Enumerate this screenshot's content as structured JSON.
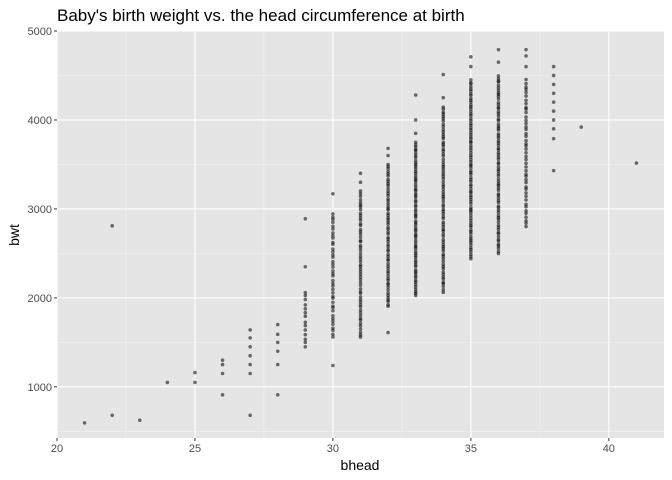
{
  "chart_data": {
    "type": "scatter",
    "title": "Baby's birth weight vs. the head circumference at birth",
    "xlabel": "bhead",
    "ylabel": "bwt",
    "xlim": [
      20,
      42
    ],
    "ylim": [
      425,
      5000
    ],
    "x_ticks": [
      20,
      25,
      30,
      35,
      40
    ],
    "y_ticks": [
      1000,
      2000,
      3000,
      4000,
      5000
    ],
    "x_tick_labels": [
      "20",
      "25",
      "30",
      "35",
      "40"
    ],
    "y_tick_labels": [
      "1000",
      "2000",
      "3000",
      "4000",
      "5000"
    ],
    "grid": true,
    "panel_background": "#e5e5e5",
    "point_color": "#000000",
    "point_alpha": 0.55,
    "points": [
      {
        "x": 21,
        "y": 595
      },
      {
        "x": 22,
        "y": 680
      },
      {
        "x": 22,
        "y": 2810
      },
      {
        "x": 23,
        "y": 625
      },
      {
        "x": 24,
        "y": 1050
      },
      {
        "x": 25,
        "y": 1050
      },
      {
        "x": 25,
        "y": 1160
      },
      {
        "x": 26,
        "y": 910
      },
      {
        "x": 26,
        "y": 1150
      },
      {
        "x": 26,
        "y": 1250
      },
      {
        "x": 26,
        "y": 1300
      },
      {
        "x": 27,
        "y": 680
      },
      {
        "x": 27,
        "y": 1150
      },
      {
        "x": 27,
        "y": 1250
      },
      {
        "x": 27,
        "y": 1350
      },
      {
        "x": 27,
        "y": 1450
      },
      {
        "x": 27,
        "y": 1550
      },
      {
        "x": 27,
        "y": 1640
      },
      {
        "x": 28,
        "y": 910
      },
      {
        "x": 28,
        "y": 1250
      },
      {
        "x": 28,
        "y": 1400
      },
      {
        "x": 28,
        "y": 1500
      },
      {
        "x": 28,
        "y": 1590
      },
      {
        "x": 28,
        "y": 1700
      },
      {
        "x": 38,
        "y": 3430
      },
      {
        "x": 38,
        "y": 3790
      },
      {
        "x": 38,
        "y": 3900
      },
      {
        "x": 38,
        "y": 4000
      },
      {
        "x": 38,
        "y": 4100
      },
      {
        "x": 38,
        "y": 4200
      },
      {
        "x": 38,
        "y": 4300
      },
      {
        "x": 38,
        "y": 4400
      },
      {
        "x": 38,
        "y": 4500
      },
      {
        "x": 38,
        "y": 4600
      },
      {
        "x": 39,
        "y": 3920
      },
      {
        "x": 41,
        "y": 3515
      }
    ],
    "dense_columns": [
      {
        "x": 29,
        "y_min": 1450,
        "y_max": 2070,
        "count": 14,
        "outliers": [
          2350,
          2890
        ]
      },
      {
        "x": 30,
        "y_min": 1560,
        "y_max": 2950,
        "count": 40,
        "outliers": [
          1240,
          3170
        ]
      },
      {
        "x": 31,
        "y_min": 1560,
        "y_max": 3200,
        "count": 55,
        "outliers": [
          3300,
          3400
        ]
      },
      {
        "x": 32,
        "y_min": 1900,
        "y_max": 3500,
        "count": 60,
        "outliers": [
          1610,
          3600,
          3680
        ]
      },
      {
        "x": 33,
        "y_min": 2020,
        "y_max": 3750,
        "count": 70,
        "outliers": [
          3850,
          4000,
          4280
        ]
      },
      {
        "x": 34,
        "y_min": 2070,
        "y_max": 4150,
        "count": 75,
        "outliers": [
          4250,
          4510
        ]
      },
      {
        "x": 35,
        "y_min": 2440,
        "y_max": 4450,
        "count": 80,
        "outliers": [
          4600,
          4710
        ]
      },
      {
        "x": 36,
        "y_min": 2500,
        "y_max": 4500,
        "count": 75,
        "outliers": [
          4650,
          4790
        ]
      },
      {
        "x": 37,
        "y_min": 2800,
        "y_max": 4450,
        "count": 45,
        "outliers": [
          4600,
          4720,
          4790
        ]
      }
    ]
  }
}
